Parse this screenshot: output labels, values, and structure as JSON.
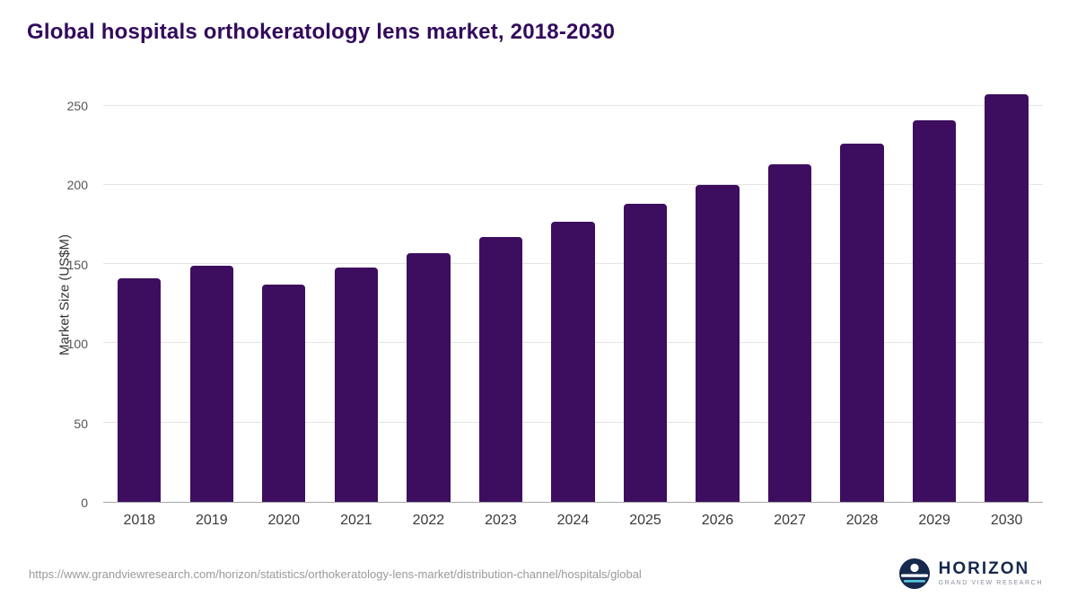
{
  "title": "Global hospitals orthokeratology lens market, 2018-2030",
  "colors": {
    "bar": "#3d0e5f",
    "title": "#330a5c",
    "gridline": "#e4e4e4",
    "logo_navy": "#16294d",
    "logo_accent": "#58c7e0"
  },
  "chart_data": {
    "type": "bar",
    "title": "Global hospitals orthokeratology lens market, 2018-2030",
    "categories": [
      "2018",
      "2019",
      "2020",
      "2021",
      "2022",
      "2023",
      "2024",
      "2025",
      "2026",
      "2027",
      "2028",
      "2029",
      "2030"
    ],
    "values": [
      141,
      149,
      137,
      148,
      157,
      167,
      177,
      188,
      200,
      213,
      226,
      241,
      257
    ],
    "xlabel": "",
    "ylabel": "Market Size (US$M)",
    "ylim": [
      0,
      260
    ],
    "yticks": [
      0,
      50,
      100,
      150,
      200,
      250
    ],
    "grid": true,
    "legend": false,
    "bar_color": "#3d0e5f"
  },
  "footer": {
    "source_url": "https://www.grandviewresearch.com/horizon/statistics/orthokeratology-lens-market/distribution-channel/hospitals/global",
    "logo_title": "HORIZON",
    "logo_subtitle": "GRAND VIEW RESEARCH"
  }
}
